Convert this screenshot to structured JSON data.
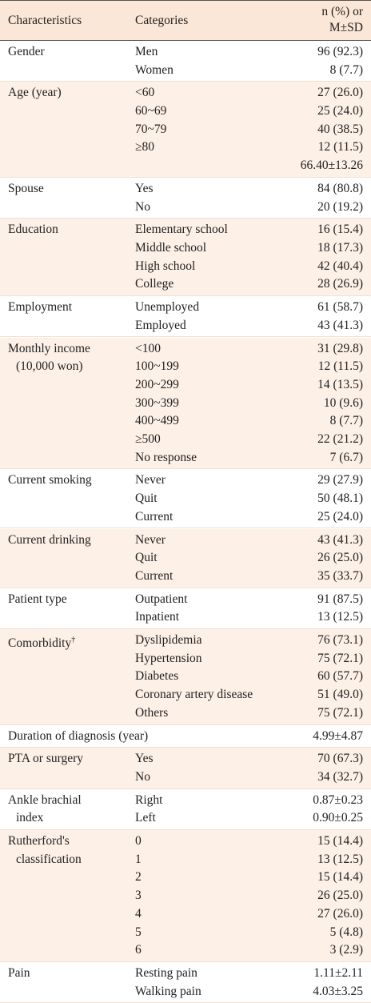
{
  "header": [
    "Characteristics",
    "Categories",
    [
      "n (%) or",
      "M±SD"
    ]
  ],
  "groups": [
    {
      "label": [
        "Gender"
      ],
      "rows": [
        [
          "Men",
          "96 (92.3)"
        ],
        [
          "Women",
          "8 (7.7)"
        ]
      ]
    },
    {
      "label": [
        "Age (year)"
      ],
      "rows": [
        [
          "<60",
          "27 (26.0)"
        ],
        [
          "60~69",
          "25 (24.0)"
        ],
        [
          "70~79",
          "40 (38.5)"
        ],
        [
          "≥80",
          "12 (11.5)"
        ],
        [
          null,
          "66.40±13.26"
        ]
      ]
    },
    {
      "label": [
        "Spouse"
      ],
      "rows": [
        [
          "Yes",
          "84 (80.8)"
        ],
        [
          "No",
          "20 (19.2)"
        ]
      ]
    },
    {
      "label": [
        "Education"
      ],
      "rows": [
        [
          "Elementary school",
          "16 (15.4)"
        ],
        [
          "Middle school",
          "18 (17.3)"
        ],
        [
          "High school",
          "42 (40.4)"
        ],
        [
          "College",
          "28 (26.9)"
        ]
      ]
    },
    {
      "label": [
        "Employment"
      ],
      "rows": [
        [
          "Unemployed",
          "61 (58.7)"
        ],
        [
          "Employed",
          "43 (41.3)"
        ]
      ]
    },
    {
      "label": [
        "Monthly income",
        "(10,000 won)"
      ],
      "rows": [
        [
          "<100",
          "31 (29.8)"
        ],
        [
          "100~199",
          "12 (11.5)"
        ],
        [
          "200~299",
          "14 (13.5)"
        ],
        [
          "300~399",
          "10 (9.6)"
        ],
        [
          "400~499",
          "8 (7.7)"
        ],
        [
          "≥500",
          "22 (21.2)"
        ],
        [
          "No response",
          "7 (6.7)"
        ]
      ]
    },
    {
      "label": [
        "Current smoking"
      ],
      "rows": [
        [
          "Never",
          "29 (27.9)"
        ],
        [
          "Quit",
          "50 (48.1)"
        ],
        [
          "Current",
          "25 (24.0)"
        ]
      ]
    },
    {
      "label": [
        "Current drinking"
      ],
      "rows": [
        [
          "Never",
          "43 (41.3)"
        ],
        [
          "Quit",
          "26 (25.0)"
        ],
        [
          "Current",
          "35 (33.7)"
        ]
      ]
    },
    {
      "label": [
        "Patient type"
      ],
      "rows": [
        [
          "Outpatient",
          "91 (87.5)"
        ],
        [
          "Inpatient",
          "13 (12.5)"
        ]
      ]
    },
    {
      "label": [
        "Comorbidity"
      ],
      "note": "†",
      "rows": [
        [
          "Dyslipidemia",
          "76 (73.1)"
        ],
        [
          "Hypertension",
          "75 (72.1)"
        ],
        [
          "Diabetes",
          "60 (57.7)"
        ],
        [
          "Coronary artery disease",
          "51 (49.0)"
        ],
        [
          "Others",
          "75 (72.1)"
        ]
      ]
    },
    {
      "label": [
        "Duration of diagnosis (year)"
      ],
      "rows": [
        [
          null,
          "4.99±4.87"
        ]
      ]
    },
    {
      "label": [
        "PTA or surgery"
      ],
      "rows": [
        [
          "Yes",
          "70 (67.3)"
        ],
        [
          "No",
          "34 (32.7)"
        ]
      ]
    },
    {
      "label": [
        "Ankle brachial",
        "index"
      ],
      "rows": [
        [
          "Right",
          "0.87±0.23"
        ],
        [
          "Left",
          "0.90±0.25"
        ]
      ]
    },
    {
      "label": [
        "Rutherford's",
        "classification"
      ],
      "rows": [
        [
          "0",
          "15 (14.4)"
        ],
        [
          "1",
          "13 (12.5)"
        ],
        [
          "2",
          "15 (14.4)"
        ],
        [
          "3",
          "26 (25.0)"
        ],
        [
          "4",
          "27 (26.0)"
        ],
        [
          "5",
          "5 (4.8)"
        ],
        [
          "6",
          "3 (2.9)"
        ]
      ]
    },
    {
      "label": [
        "Pain"
      ],
      "rows": [
        [
          "Resting pain",
          "1.11±2.11"
        ],
        [
          "Walking pain",
          "4.03±3.25"
        ]
      ]
    }
  ]
}
